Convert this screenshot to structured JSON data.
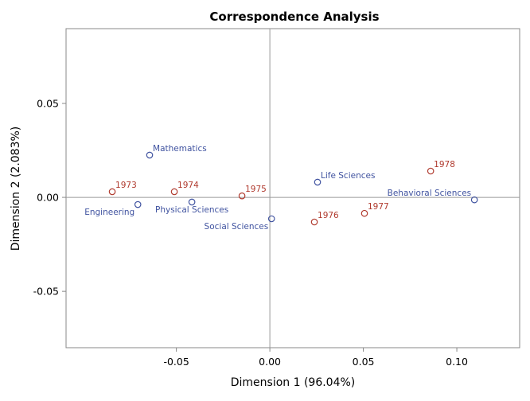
{
  "chart_data": {
    "type": "scatter",
    "title": "Correspondence Analysis",
    "xlabel": "Dimension 1 (96.04%)",
    "ylabel": "Dimension 2 (2.083%)",
    "xlim": [
      -0.109,
      0.1336
    ],
    "ylim": [
      -0.08,
      0.0898
    ],
    "xticks": [
      -0.05,
      0.0,
      0.05,
      0.1
    ],
    "xtick_labels": [
      "-0.05",
      "0.00",
      "0.05",
      "0.10"
    ],
    "yticks": [
      -0.05,
      0.0,
      0.05
    ],
    "ytick_labels": [
      "-0.05",
      "0.00",
      "0.05"
    ],
    "grid": false,
    "reference_lines": {
      "x": 0,
      "y": 0
    },
    "series": [
      {
        "color": "#4053a0",
        "points": [
          {
            "label": "Mathematics",
            "x": -0.0643,
            "y": 0.0225
          },
          {
            "label": "Engineering",
            "x": -0.0706,
            "y": -0.0038
          },
          {
            "label": "Physical Sciences",
            "x": -0.0417,
            "y": -0.0025
          },
          {
            "label": "Social Sciences",
            "x": 0.0009,
            "y": -0.0114
          },
          {
            "label": "Life Sciences",
            "x": 0.0255,
            "y": 0.0081
          },
          {
            "label": "Behavioral Sciences",
            "x": 0.1094,
            "y": -0.0013
          }
        ]
      },
      {
        "color": "#b03a2e",
        "points": [
          {
            "label": "1973",
            "x": -0.0843,
            "y": 0.003
          },
          {
            "label": "1974",
            "x": -0.0511,
            "y": 0.003
          },
          {
            "label": "1975",
            "x": -0.0149,
            "y": 0.0008
          },
          {
            "label": "1976",
            "x": 0.0238,
            "y": -0.0131
          },
          {
            "label": "1977",
            "x": 0.0506,
            "y": -0.0085
          },
          {
            "label": "1978",
            "x": 0.086,
            "y": 0.014
          }
        ]
      }
    ]
  }
}
